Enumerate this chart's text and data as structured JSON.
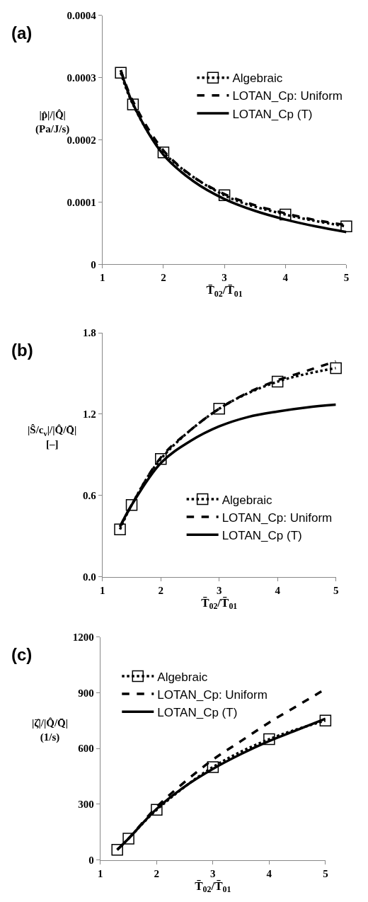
{
  "chart_data": [
    {
      "type": "line",
      "title": "(a)",
      "xlabel": "T̄$_{02}$/T̄$_{01}$",
      "ylabel": "|p̂|/|Q̂|\n(Pa/J/s)",
      "xlim": [
        1,
        5
      ],
      "xticks": [
        1,
        2,
        3,
        4,
        5
      ],
      "ylim": [
        0,
        0.0004
      ],
      "yticks": [
        0,
        0.0001,
        0.0002,
        0.0003,
        0.0004
      ],
      "legend": "top right",
      "series": [
        {
          "name": "Algebraic",
          "color": "#000000",
          "line_style": "dotted",
          "marker": "square",
          "x": [
            1.3,
            1.5,
            2,
            3,
            4,
            5
          ],
          "values": [
            0.000308,
            0.000257,
            0.00018,
            0.000111,
            8e-05,
            6.1e-05
          ]
        },
        {
          "name": "LOTAN_Cp: Uniform",
          "color": "#000000",
          "line_style": "dashed",
          "marker": "none",
          "x": [
            1.3,
            1.5,
            2,
            2.5,
            3,
            3.5,
            4,
            4.5,
            5
          ],
          "values": [
            0.000312,
            0.000262,
            0.000183,
            0.00014,
            0.000113,
            9.5e-05,
            8.2e-05,
            7.1e-05,
            6.3e-05
          ]
        },
        {
          "name": "LOTAN_Cp (T)",
          "color": "#000000",
          "line_style": "solid",
          "marker": "none",
          "x": [
            1.3,
            1.5,
            2,
            2.5,
            3,
            3.5,
            4,
            4.5,
            5
          ],
          "values": [
            0.000312,
            0.000258,
            0.000176,
            0.000133,
            0.000105,
            8.6e-05,
            7.2e-05,
            6.1e-05,
            5.2e-05
          ]
        }
      ]
    },
    {
      "type": "line",
      "title": "(b)",
      "xlabel": "T̄$_{02}$/T̄$_{01}$",
      "ylabel": "|Ŝ/c$_{v}$|/|Q̂/Q̄|\n[–]",
      "xlim": [
        1,
        5
      ],
      "xticks": [
        1,
        2,
        3,
        4,
        5
      ],
      "ylim": [
        0,
        1.8
      ],
      "yticks": [
        {
          "value": 0,
          "label": "0.0"
        },
        {
          "value": 0.6,
          "label": "0.6"
        },
        {
          "value": 1.2,
          "label": "1.2"
        },
        {
          "value": 1.8,
          "label": "1.8"
        }
      ],
      "legend": "bottom right",
      "series": [
        {
          "name": "Algebraic",
          "color": "#000000",
          "line_style": "dotted",
          "marker": "square",
          "x": [
            1.3,
            1.5,
            2,
            3,
            4,
            5
          ],
          "values": [
            0.35,
            0.53,
            0.87,
            1.24,
            1.44,
            1.54
          ]
        },
        {
          "name": "LOTAN_Cp: Uniform",
          "color": "#000000",
          "line_style": "dashed",
          "marker": "none",
          "x": [
            1.3,
            1.5,
            2,
            2.5,
            3,
            3.5,
            4,
            4.5,
            5
          ],
          "values": [
            0.37,
            0.53,
            0.88,
            1.08,
            1.24,
            1.36,
            1.45,
            1.52,
            1.59
          ]
        },
        {
          "name": "LOTAN_Cp (T)",
          "color": "#000000",
          "line_style": "solid",
          "marker": "none",
          "x": [
            1.3,
            1.5,
            2,
            2.5,
            3,
            3.5,
            4,
            4.5,
            5
          ],
          "values": [
            0.37,
            0.53,
            0.84,
            1.0,
            1.11,
            1.18,
            1.22,
            1.25,
            1.27
          ]
        }
      ]
    },
    {
      "type": "line",
      "title": "(c)",
      "xlabel": "T̄$_{02}$/T̄$_{01}$",
      "ylabel": "|ζ̂|/|Q̂/Q̄|\n(1/s)",
      "xlim": [
        1,
        5
      ],
      "xticks": [
        1,
        2,
        3,
        4,
        5
      ],
      "ylim": [
        0,
        1200
      ],
      "yticks": [
        0,
        300,
        600,
        900,
        1200
      ],
      "legend": "top left",
      "series": [
        {
          "name": "Algebraic",
          "color": "#000000",
          "line_style": "dotted",
          "marker": "square",
          "x": [
            1.3,
            1.5,
            2,
            3,
            4,
            5
          ],
          "values": [
            55,
            115,
            270,
            500,
            650,
            750
          ]
        },
        {
          "name": "LOTAN_Cp: Uniform",
          "color": "#000000",
          "line_style": "dashed",
          "marker": "none",
          "x": [
            1.3,
            1.5,
            2,
            2.5,
            3,
            3.5,
            4,
            4.5,
            5
          ],
          "values": [
            55,
            115,
            285,
            420,
            540,
            640,
            740,
            830,
            920
          ]
        },
        {
          "name": "LOTAN_Cp (T)",
          "color": "#000000",
          "line_style": "solid",
          "marker": "none",
          "x": [
            1.3,
            1.5,
            2,
            2.5,
            3,
            3.5,
            4,
            4.5,
            5
          ],
          "values": [
            55,
            115,
            275,
            395,
            490,
            570,
            640,
            700,
            760
          ]
        }
      ]
    }
  ]
}
